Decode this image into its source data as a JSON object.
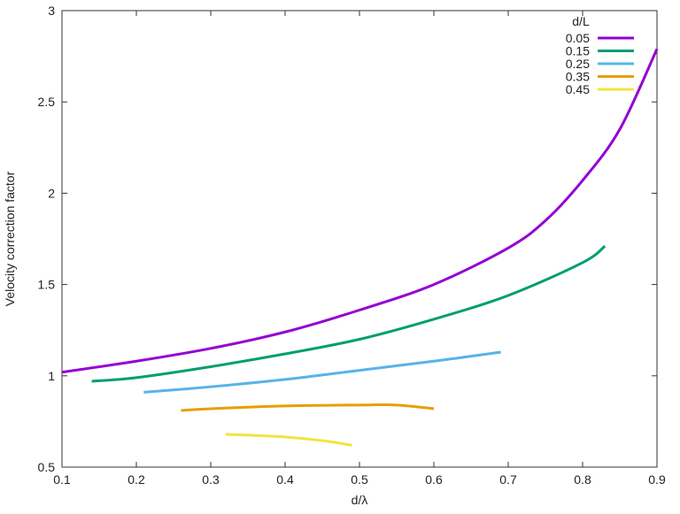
{
  "chart_data": {
    "type": "line",
    "title": "",
    "xlabel": "d/λ",
    "ylabel": "Velocity correction factor",
    "xlim": [
      0.1,
      0.9
    ],
    "ylim": [
      0.5,
      3
    ],
    "xticks": [
      "0.1",
      "0.2",
      "0.3",
      "0.4",
      "0.5",
      "0.6",
      "0.7",
      "0.8",
      "0.9"
    ],
    "yticks": [
      "0.5",
      "1",
      "1.5",
      "2",
      "2.5",
      "3"
    ],
    "grid": false,
    "legend": {
      "title": "d/L",
      "placement": "top-right"
    },
    "series": [
      {
        "name": "0.05",
        "color": "#9400d3",
        "x": [
          0.1,
          0.2,
          0.3,
          0.4,
          0.5,
          0.6,
          0.7,
          0.75,
          0.8,
          0.85,
          0.9
        ],
        "y": [
          1.02,
          1.08,
          1.15,
          1.24,
          1.36,
          1.5,
          1.7,
          1.85,
          2.07,
          2.35,
          2.79
        ]
      },
      {
        "name": "0.15",
        "color": "#009e73",
        "x": [
          0.14,
          0.2,
          0.3,
          0.4,
          0.5,
          0.6,
          0.7,
          0.8,
          0.83
        ],
        "y": [
          0.97,
          0.99,
          1.05,
          1.12,
          1.2,
          1.31,
          1.44,
          1.62,
          1.71
        ]
      },
      {
        "name": "0.25",
        "color": "#56b4e9",
        "x": [
          0.21,
          0.3,
          0.4,
          0.5,
          0.6,
          0.69
        ],
        "y": [
          0.91,
          0.94,
          0.98,
          1.03,
          1.08,
          1.13
        ]
      },
      {
        "name": "0.35",
        "color": "#e69f00",
        "x": [
          0.26,
          0.3,
          0.4,
          0.5,
          0.55,
          0.6
        ],
        "y": [
          0.81,
          0.82,
          0.835,
          0.84,
          0.84,
          0.82
        ]
      },
      {
        "name": "0.45",
        "color": "#f0e442",
        "x": [
          0.32,
          0.4,
          0.45,
          0.49
        ],
        "y": [
          0.68,
          0.665,
          0.645,
          0.62
        ]
      }
    ]
  }
}
